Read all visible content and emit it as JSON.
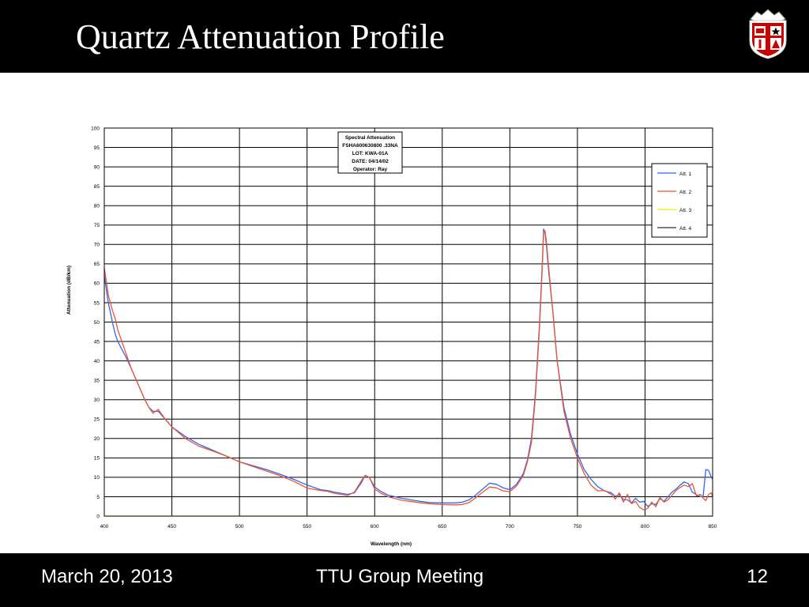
{
  "slide": {
    "title": "Quartz Attenuation Profile",
    "footer_left": "March 20, 2013",
    "footer_center": "TTU Group Meeting",
    "footer_right": "12"
  },
  "logo": {
    "icon": "ttu-shield-logo",
    "colors": {
      "red": "#cc0000",
      "white": "#ffffff",
      "black": "#000000"
    }
  },
  "colors": {
    "background": "#000000",
    "plot_bg": "#ffffff",
    "grid": "#000000"
  },
  "chart_data": {
    "type": "line",
    "title": "",
    "xlabel": "Wavelength (nm)",
    "ylabel": "Attenuation (dB/km)",
    "xlim": [
      400,
      850
    ],
    "ylim": [
      0,
      100
    ],
    "x_ticks": [
      400,
      450,
      500,
      550,
      600,
      650,
      700,
      750,
      800,
      850
    ],
    "y_ticks": [
      0,
      5,
      10,
      15,
      20,
      25,
      30,
      35,
      40,
      45,
      50,
      55,
      60,
      65,
      70,
      75,
      80,
      85,
      90,
      95,
      100
    ],
    "grid": true,
    "legend_position": "top-right",
    "info_box": {
      "lines": [
        "Spectral Attenuation",
        "FSHA600630800 .33NA",
        "LOT: KWA-01A",
        "DATE: 04/14/02",
        "Operator: Ray"
      ]
    },
    "series": [
      {
        "name": "Att. 1",
        "color": "#3366ee",
        "x": [
          400,
          403,
          406,
          408,
          410,
          413,
          416,
          420,
          425,
          430,
          433,
          436,
          440,
          445,
          450,
          460,
          470,
          480,
          490,
          500,
          510,
          520,
          530,
          540,
          550,
          560,
          565,
          570,
          580,
          585,
          590,
          593,
          596,
          600,
          605,
          610,
          620,
          630,
          640,
          650,
          660,
          665,
          670,
          675,
          680,
          685,
          690,
          695,
          700,
          705,
          710,
          713,
          716,
          719,
          722,
          724,
          725,
          726,
          727,
          729,
          732,
          735,
          740,
          745,
          750,
          755,
          760,
          765,
          770,
          775,
          778,
          781,
          784,
          787,
          790,
          793,
          796,
          799,
          802,
          805,
          808,
          811,
          814,
          817,
          820,
          823,
          826,
          829,
          832,
          835,
          838,
          841,
          843,
          845,
          847,
          849,
          850
        ],
        "y": [
          62,
          55,
          50,
          47,
          45,
          43,
          41,
          38,
          34,
          30,
          28,
          27,
          27,
          25,
          23,
          20.5,
          18.5,
          17,
          15.5,
          14,
          13,
          12,
          10.8,
          9.5,
          8,
          6.8,
          6.6,
          6.2,
          5.6,
          6,
          8.5,
          10.5,
          10,
          7.5,
          6.3,
          5.4,
          4.6,
          4,
          3.5,
          3.4,
          3.4,
          3.6,
          4.2,
          5.5,
          7,
          8.5,
          8.2,
          7.3,
          6.8,
          8.2,
          11,
          14.5,
          20,
          32,
          50,
          65,
          74,
          73,
          70,
          62,
          52,
          40,
          28,
          21,
          16,
          12,
          9.5,
          7.6,
          6.5,
          6,
          5.1,
          5.5,
          4.3,
          4.2,
          3.4,
          4.6,
          3.6,
          3.8,
          2.5,
          3.2,
          3,
          4.5,
          3.8,
          5,
          6.2,
          7,
          8,
          8.8,
          8.4,
          6.2,
          5.5,
          5,
          5.1,
          12,
          11.8,
          10,
          9.5
        ]
      },
      {
        "name": "Att. 2",
        "color": "#ee5533",
        "x": [
          400,
          403,
          406,
          408,
          410,
          413,
          416,
          420,
          425,
          430,
          433,
          436,
          440,
          445,
          450,
          460,
          470,
          480,
          490,
          500,
          510,
          520,
          530,
          540,
          550,
          560,
          565,
          570,
          580,
          585,
          590,
          593,
          596,
          600,
          605,
          610,
          620,
          630,
          640,
          650,
          660,
          665,
          670,
          675,
          680,
          685,
          690,
          695,
          700,
          705,
          710,
          713,
          716,
          719,
          722,
          724,
          725,
          726,
          727,
          729,
          732,
          735,
          740,
          745,
          750,
          755,
          760,
          765,
          770,
          775,
          778,
          781,
          784,
          787,
          790,
          793,
          796,
          799,
          802,
          805,
          808,
          811,
          814,
          817,
          820,
          823,
          826,
          829,
          832,
          835,
          838,
          841,
          843,
          845,
          847,
          849,
          850
        ],
        "y": [
          64,
          57,
          53,
          51,
          48,
          45,
          42,
          38,
          34,
          30,
          28,
          26.5,
          27.5,
          25,
          23,
          20,
          18,
          16.8,
          15.5,
          14,
          12.8,
          11.6,
          10.4,
          9,
          7.2,
          6.6,
          6.4,
          5.9,
          5.3,
          6.2,
          9,
          10.5,
          10,
          7,
          5.8,
          5,
          4.1,
          3.6,
          3.2,
          3,
          2.9,
          3,
          3.5,
          4.8,
          6.2,
          7.5,
          7.3,
          6.5,
          6.3,
          7.8,
          10.5,
          14,
          19,
          31,
          49,
          64,
          73,
          73.5,
          71,
          63,
          52,
          40,
          27,
          20,
          15,
          11,
          8,
          6.5,
          6.6,
          5.6,
          4.4,
          6,
          3.6,
          5.6,
          3.2,
          3.8,
          2.2,
          1.6,
          2,
          3.6,
          2.4,
          4.8,
          3.6,
          4.2,
          5.4,
          6.6,
          7.4,
          8,
          7.6,
          8.4,
          5.2,
          5.6,
          4.6,
          4,
          5.6,
          6,
          5
        ]
      },
      {
        "name": "Att. 3",
        "color": "#eeee00",
        "x": [
          400,
          850
        ],
        "y": [
          0,
          0
        ]
      },
      {
        "name": "Att. 4",
        "color": "#333333",
        "x": [],
        "y": []
      }
    ]
  }
}
